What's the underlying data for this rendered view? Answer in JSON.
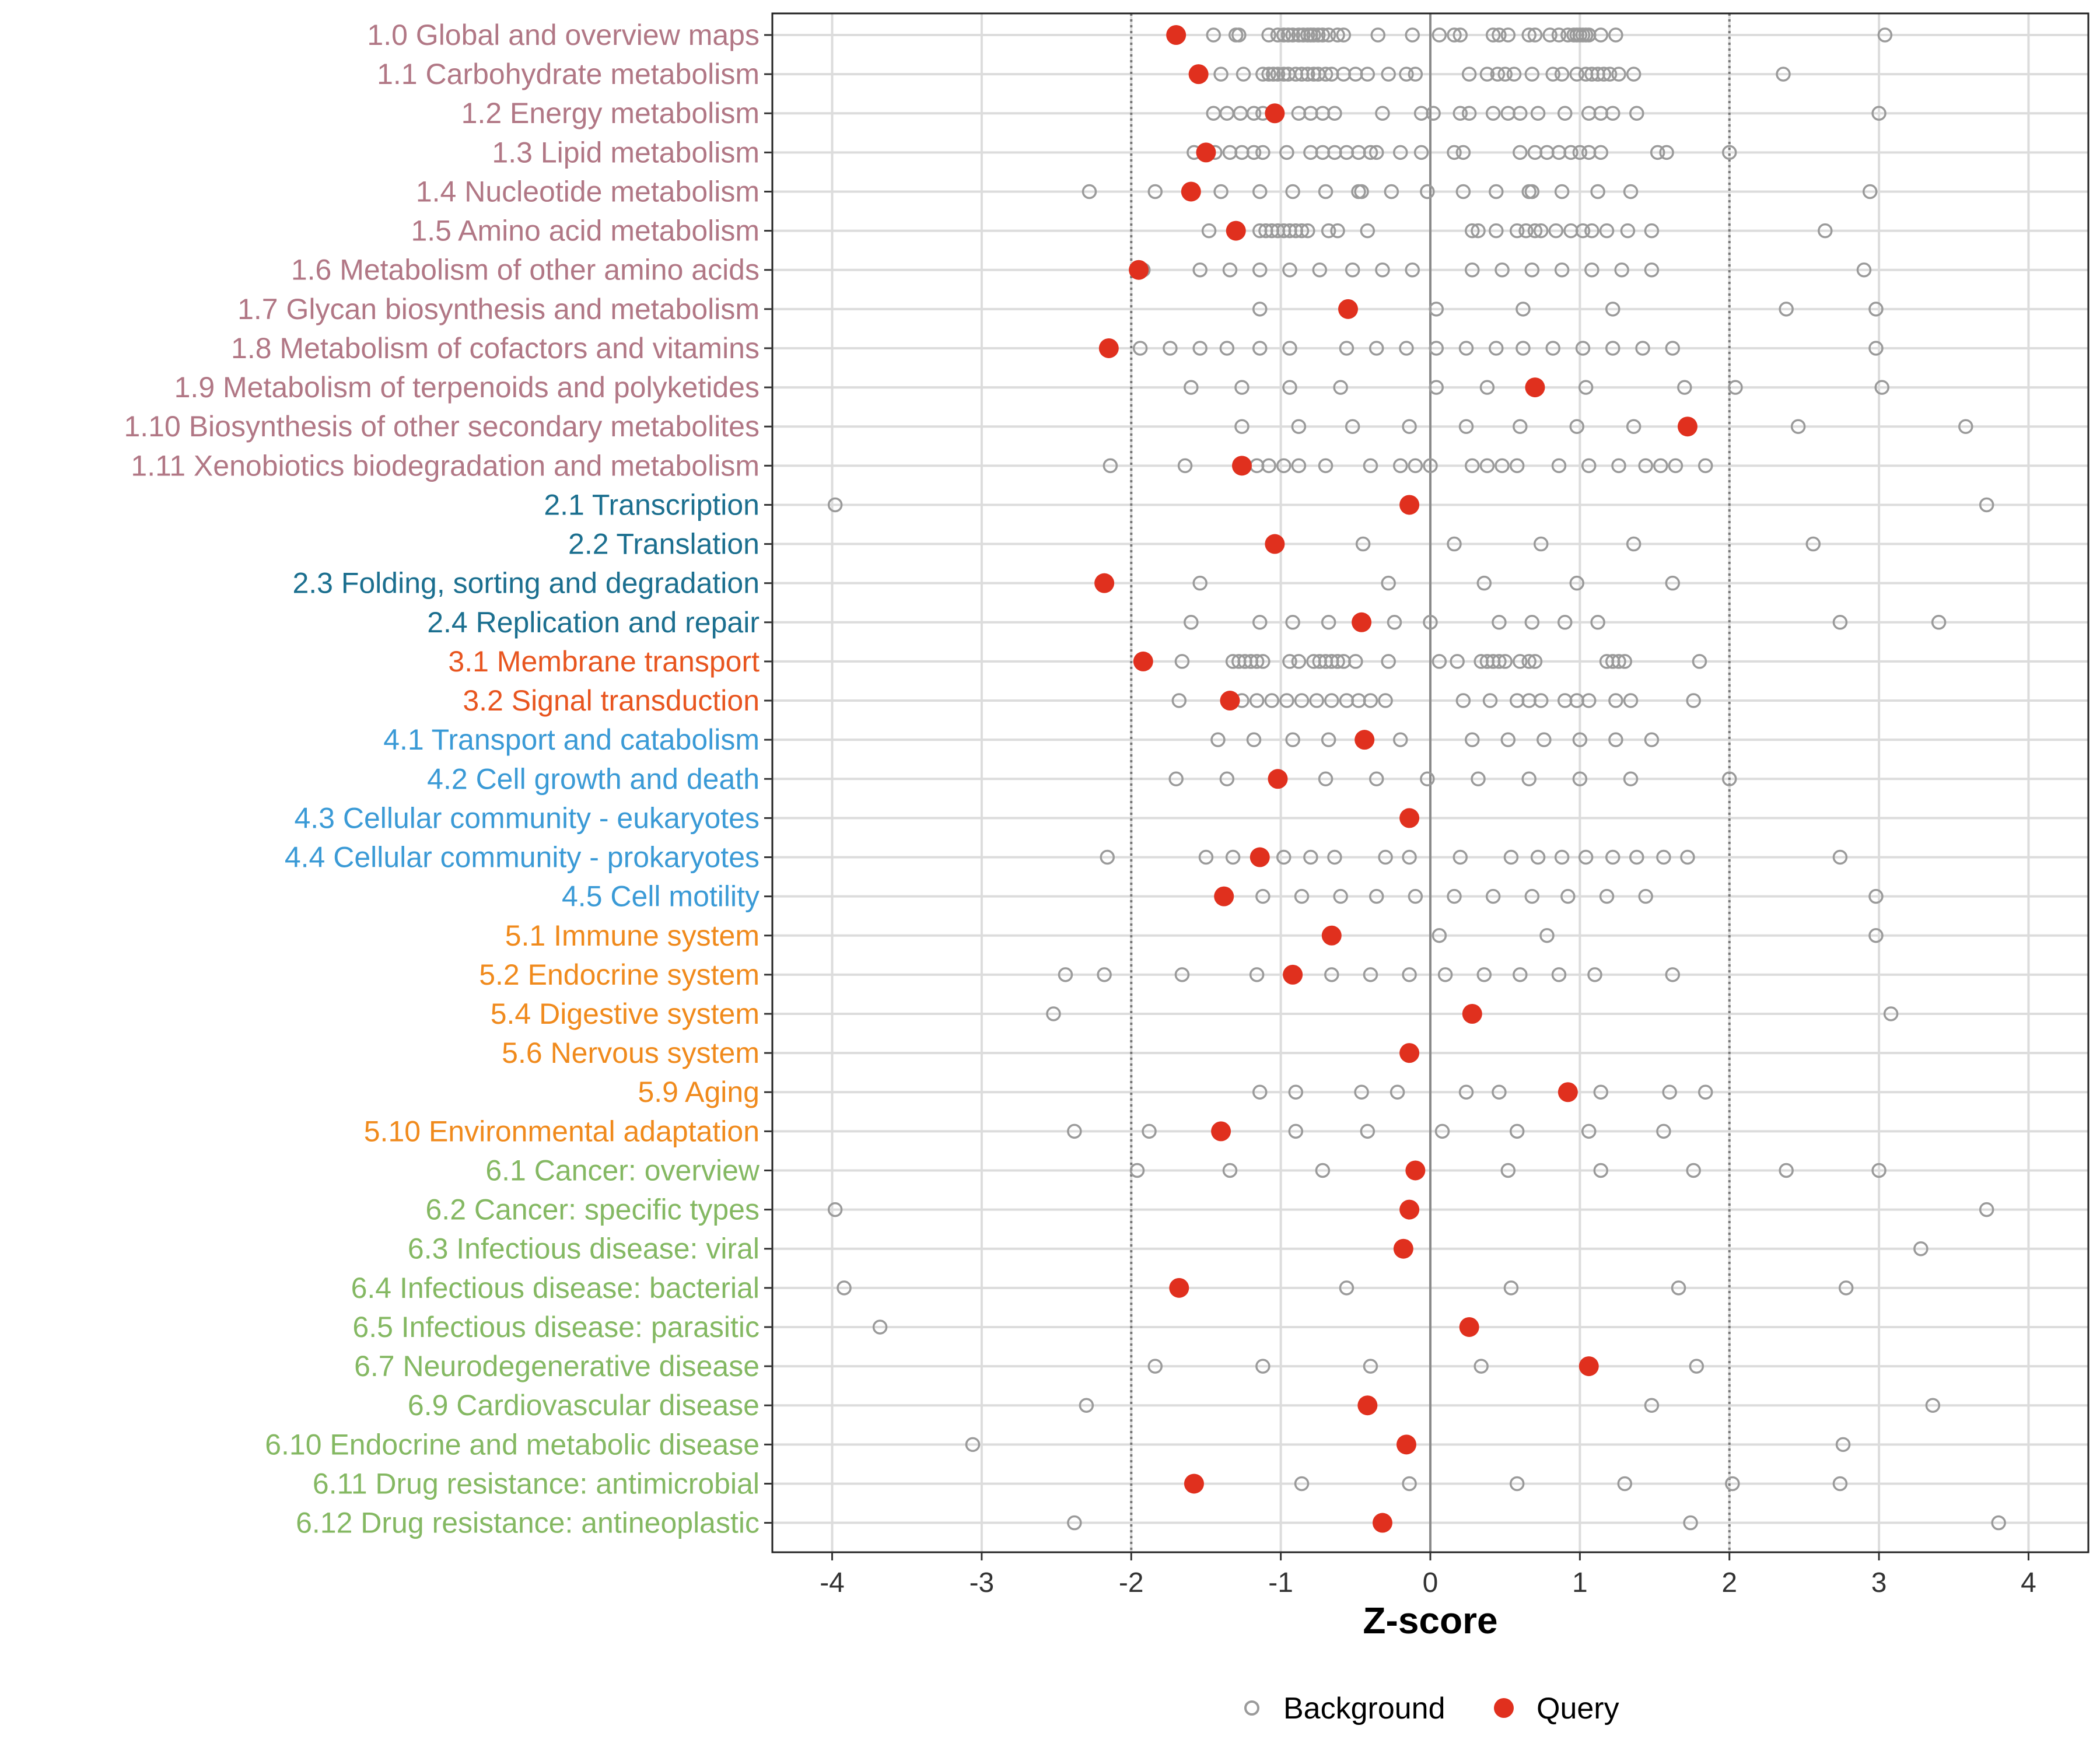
{
  "chart_data": {
    "type": "scatter",
    "title": "",
    "xlabel": "Z-score",
    "ylabel": "",
    "xlim": [
      -4.4,
      4.4
    ],
    "x_ticks": [
      -4,
      -3,
      -2,
      -1,
      0,
      1,
      2,
      3,
      4
    ],
    "reference_lines": [
      -2,
      0,
      2
    ],
    "grid": true,
    "legend_position": "bottom",
    "legend": [
      {
        "name": "Background",
        "marker": "open-circle",
        "color": "#9a9a9a"
      },
      {
        "name": "Query",
        "marker": "filled-circle",
        "color": "#e0301e"
      }
    ],
    "group_colors": {
      "1": "#b17785",
      "2": "#1b6f8f",
      "3": "#e8551f",
      "4": "#3a9ad6",
      "5": "#f08a1c",
      "6": "#84b862"
    },
    "categories": [
      {
        "label": "1.0 Global and overview maps",
        "group": "1",
        "query": -1.7,
        "background": [
          -1.45,
          -1.3,
          -1.28,
          -1.08,
          -1.02,
          -0.98,
          -0.95,
          -0.92,
          -0.88,
          -0.85,
          -0.82,
          -0.8,
          -0.78,
          -0.75,
          -0.72,
          -0.68,
          -0.62,
          -0.58,
          -0.35,
          -0.12,
          0.06,
          0.16,
          0.2,
          0.42,
          0.46,
          0.52,
          0.66,
          0.7,
          0.8,
          0.86,
          0.92,
          0.96,
          0.98,
          1.0,
          1.02,
          1.04,
          1.06,
          1.14,
          1.24,
          3.04
        ]
      },
      {
        "label": "1.1 Carbohydrate metabolism",
        "group": "1",
        "query": -1.55,
        "background": [
          -1.4,
          -1.25,
          -1.12,
          -1.08,
          -1.05,
          -1.02,
          -0.98,
          -0.95,
          -0.9,
          -0.86,
          -0.82,
          -0.78,
          -0.75,
          -0.7,
          -0.66,
          -0.58,
          -0.5,
          -0.42,
          -0.28,
          -0.16,
          -0.1,
          0.26,
          0.38,
          0.45,
          0.5,
          0.56,
          0.68,
          0.82,
          0.88,
          0.98,
          1.04,
          1.08,
          1.12,
          1.16,
          1.2,
          1.26,
          1.36,
          2.36
        ]
      },
      {
        "label": "1.2 Energy metabolism",
        "group": "1",
        "query": -1.04,
        "background": [
          -1.45,
          -1.36,
          -1.27,
          -1.18,
          -1.12,
          -0.88,
          -0.8,
          -0.72,
          -0.64,
          -0.32,
          -0.06,
          0.02,
          0.2,
          0.26,
          0.42,
          0.52,
          0.6,
          0.72,
          0.9,
          1.06,
          1.14,
          1.22,
          1.38,
          3.0
        ]
      },
      {
        "label": "1.3 Lipid metabolism",
        "group": "1",
        "query": -1.5,
        "background": [
          -1.58,
          -1.44,
          -1.34,
          -1.26,
          -1.18,
          -1.12,
          -0.96,
          -0.8,
          -0.72,
          -0.64,
          -0.56,
          -0.48,
          -0.4,
          -0.36,
          -0.2,
          -0.06,
          0.16,
          0.22,
          0.6,
          0.7,
          0.78,
          0.86,
          0.94,
          1.0,
          1.06,
          1.14,
          1.52,
          1.58,
          2.0
        ]
      },
      {
        "label": "1.4 Nucleotide metabolism",
        "group": "1",
        "query": -1.6,
        "background": [
          -2.28,
          -1.84,
          -1.4,
          -1.14,
          -0.92,
          -0.7,
          -0.48,
          -0.46,
          -0.26,
          -0.02,
          0.22,
          0.44,
          0.66,
          0.68,
          0.88,
          1.12,
          1.34,
          2.94
        ]
      },
      {
        "label": "1.5 Amino acid metabolism",
        "group": "1",
        "query": -1.3,
        "background": [
          -1.48,
          -1.14,
          -1.1,
          -1.06,
          -1.02,
          -0.98,
          -0.94,
          -0.9,
          -0.86,
          -0.82,
          -0.68,
          -0.62,
          -0.42,
          0.28,
          0.32,
          0.44,
          0.58,
          0.64,
          0.7,
          0.74,
          0.84,
          0.94,
          1.02,
          1.08,
          1.18,
          1.32,
          1.48,
          2.64
        ]
      },
      {
        "label": "1.6 Metabolism of other amino acids",
        "group": "1",
        "query": -1.95,
        "background": [
          -1.92,
          -1.54,
          -1.34,
          -1.14,
          -0.94,
          -0.74,
          -0.52,
          -0.32,
          -0.12,
          0.28,
          0.48,
          0.68,
          0.88,
          1.08,
          1.28,
          1.48,
          2.9
        ]
      },
      {
        "label": "1.7 Glycan biosynthesis and metabolism",
        "group": "1",
        "query": -0.55,
        "background": [
          -1.14,
          0.04,
          0.62,
          1.22,
          2.38,
          2.98
        ]
      },
      {
        "label": "1.8 Metabolism of cofactors and vitamins",
        "group": "1",
        "query": -2.15,
        "background": [
          -1.94,
          -1.74,
          -1.54,
          -1.36,
          -1.14,
          -0.94,
          -0.56,
          -0.36,
          -0.16,
          0.04,
          0.24,
          0.44,
          0.62,
          0.82,
          1.02,
          1.22,
          1.42,
          1.62,
          2.98
        ]
      },
      {
        "label": "1.9 Metabolism of terpenoids and polyketides",
        "group": "1",
        "query": 0.7,
        "background": [
          -1.6,
          -1.26,
          -0.94,
          -0.6,
          0.04,
          0.38,
          1.04,
          1.7,
          2.04,
          3.02
        ]
      },
      {
        "label": "1.10 Biosynthesis of other secondary metabolites",
        "group": "1",
        "query": 1.72,
        "background": [
          -1.26,
          -0.88,
          -0.52,
          -0.14,
          0.24,
          0.6,
          0.98,
          1.36,
          2.46,
          3.58
        ]
      },
      {
        "label": "1.11 Xenobiotics biodegradation and metabolism",
        "group": "1",
        "query": -1.26,
        "background": [
          -2.14,
          -1.64,
          -1.16,
          -1.08,
          -0.98,
          -0.88,
          -0.7,
          -0.4,
          -0.2,
          -0.1,
          0.0,
          0.28,
          0.38,
          0.48,
          0.58,
          0.86,
          1.06,
          1.26,
          1.44,
          1.54,
          1.64,
          1.84
        ]
      },
      {
        "label": "2.1 Transcription",
        "group": "2",
        "query": -0.14,
        "background": [
          -3.98,
          3.72
        ]
      },
      {
        "label": "2.2 Translation",
        "group": "2",
        "query": -1.04,
        "background": [
          -0.45,
          0.16,
          0.74,
          1.36,
          2.56
        ]
      },
      {
        "label": "2.3 Folding, sorting and degradation",
        "group": "2",
        "query": -2.18,
        "background": [
          -1.54,
          -0.28,
          0.36,
          0.98,
          1.62
        ]
      },
      {
        "label": "2.4 Replication and repair",
        "group": "2",
        "query": -0.46,
        "background": [
          -1.6,
          -1.14,
          -0.92,
          -0.68,
          -0.24,
          0.0,
          0.46,
          0.68,
          0.9,
          1.12,
          2.74,
          3.4
        ]
      },
      {
        "label": "3.1 Membrane transport",
        "group": "3",
        "query": -1.92,
        "background": [
          -1.66,
          -1.32,
          -1.28,
          -1.24,
          -1.2,
          -1.16,
          -1.12,
          -0.94,
          -0.88,
          -0.78,
          -0.74,
          -0.7,
          -0.66,
          -0.62,
          -0.58,
          -0.5,
          -0.28,
          0.06,
          0.18,
          0.34,
          0.38,
          0.42,
          0.46,
          0.5,
          0.6,
          0.66,
          0.7,
          1.18,
          1.22,
          1.26,
          1.3,
          1.8
        ]
      },
      {
        "label": "3.2 Signal transduction",
        "group": "3",
        "query": -1.34,
        "background": [
          -1.68,
          -1.26,
          -1.16,
          -1.06,
          -0.96,
          -0.86,
          -0.76,
          -0.66,
          -0.56,
          -0.48,
          -0.4,
          -0.3,
          0.22,
          0.4,
          0.58,
          0.66,
          0.74,
          0.9,
          0.98,
          1.06,
          1.24,
          1.34,
          1.76
        ]
      },
      {
        "label": "4.1 Transport and catabolism",
        "group": "4",
        "query": -0.44,
        "background": [
          -1.42,
          -1.18,
          -0.92,
          -0.68,
          -0.2,
          0.28,
          0.52,
          0.76,
          1.0,
          1.24,
          1.48
        ]
      },
      {
        "label": "4.2 Cell growth and death",
        "group": "4",
        "query": -1.02,
        "background": [
          -1.7,
          -1.36,
          -0.7,
          -0.36,
          -0.02,
          0.32,
          0.66,
          1.0,
          1.34,
          2.0
        ]
      },
      {
        "label": "4.3 Cellular community - eukaryotes",
        "group": "4",
        "query": -0.14,
        "background": []
      },
      {
        "label": "4.4 Cellular community - prokaryotes",
        "group": "4",
        "query": -1.14,
        "background": [
          -2.16,
          -1.5,
          -1.32,
          -0.98,
          -0.8,
          -0.64,
          -0.3,
          -0.14,
          0.2,
          0.54,
          0.72,
          0.88,
          1.04,
          1.22,
          1.38,
          1.56,
          1.72,
          2.74
        ]
      },
      {
        "label": "4.5 Cell motility",
        "group": "4",
        "query": -1.38,
        "background": [
          -1.12,
          -0.86,
          -0.6,
          -0.36,
          -0.1,
          0.16,
          0.42,
          0.68,
          0.92,
          1.18,
          1.44,
          2.98
        ]
      },
      {
        "label": "5.1 Immune system",
        "group": "5",
        "query": -0.66,
        "background": [
          0.06,
          0.78,
          2.98
        ]
      },
      {
        "label": "5.2 Endocrine system",
        "group": "5",
        "query": -0.92,
        "background": [
          -2.44,
          -2.18,
          -1.66,
          -1.16,
          -0.66,
          -0.4,
          -0.14,
          0.1,
          0.36,
          0.6,
          0.86,
          1.1,
          1.62
        ]
      },
      {
        "label": "5.4 Digestive system",
        "group": "5",
        "query": 0.28,
        "background": [
          -2.52,
          3.08
        ]
      },
      {
        "label": "5.6 Nervous system",
        "group": "5",
        "query": -0.14,
        "background": []
      },
      {
        "label": "5.9 Aging",
        "group": "5",
        "query": 0.92,
        "background": [
          -1.14,
          -0.9,
          -0.46,
          -0.22,
          0.24,
          0.46,
          1.14,
          1.6,
          1.84
        ]
      },
      {
        "label": "5.10 Environmental adaptation",
        "group": "5",
        "query": -1.4,
        "background": [
          -2.38,
          -1.88,
          -0.9,
          -0.42,
          0.08,
          0.58,
          1.06,
          1.56
        ]
      },
      {
        "label": "6.1 Cancer: overview",
        "group": "6",
        "query": -0.1,
        "background": [
          -1.96,
          -1.34,
          -0.72,
          0.52,
          1.14,
          1.76,
          2.38,
          3.0
        ]
      },
      {
        "label": "6.2 Cancer: specific types",
        "group": "6",
        "query": -0.14,
        "background": [
          -3.98,
          3.72
        ]
      },
      {
        "label": "6.3 Infectious disease: viral",
        "group": "6",
        "query": -0.18,
        "background": [
          3.28
        ]
      },
      {
        "label": "6.4 Infectious disease: bacterial",
        "group": "6",
        "query": -1.68,
        "background": [
          -3.92,
          -0.56,
          0.54,
          1.66,
          2.78
        ]
      },
      {
        "label": "6.5 Infectious disease: parasitic",
        "group": "6",
        "query": 0.26,
        "background": [
          -3.68
        ]
      },
      {
        "label": "6.7 Neurodegenerative disease",
        "group": "6",
        "query": 1.06,
        "background": [
          -1.84,
          -1.12,
          -0.4,
          0.34,
          1.78
        ]
      },
      {
        "label": "6.9 Cardiovascular disease",
        "group": "6",
        "query": -0.42,
        "background": [
          -2.3,
          1.48,
          3.36
        ]
      },
      {
        "label": "6.10 Endocrine and metabolic disease",
        "group": "6",
        "query": -0.16,
        "background": [
          -3.06,
          2.76
        ]
      },
      {
        "label": "6.11 Drug resistance: antimicrobial",
        "group": "6",
        "query": -1.58,
        "background": [
          -0.86,
          -0.14,
          0.58,
          1.3,
          2.02,
          2.74
        ]
      },
      {
        "label": "6.12 Drug resistance: antineoplastic",
        "group": "6",
        "query": -0.32,
        "background": [
          -2.38,
          1.74,
          3.8
        ]
      }
    ]
  }
}
